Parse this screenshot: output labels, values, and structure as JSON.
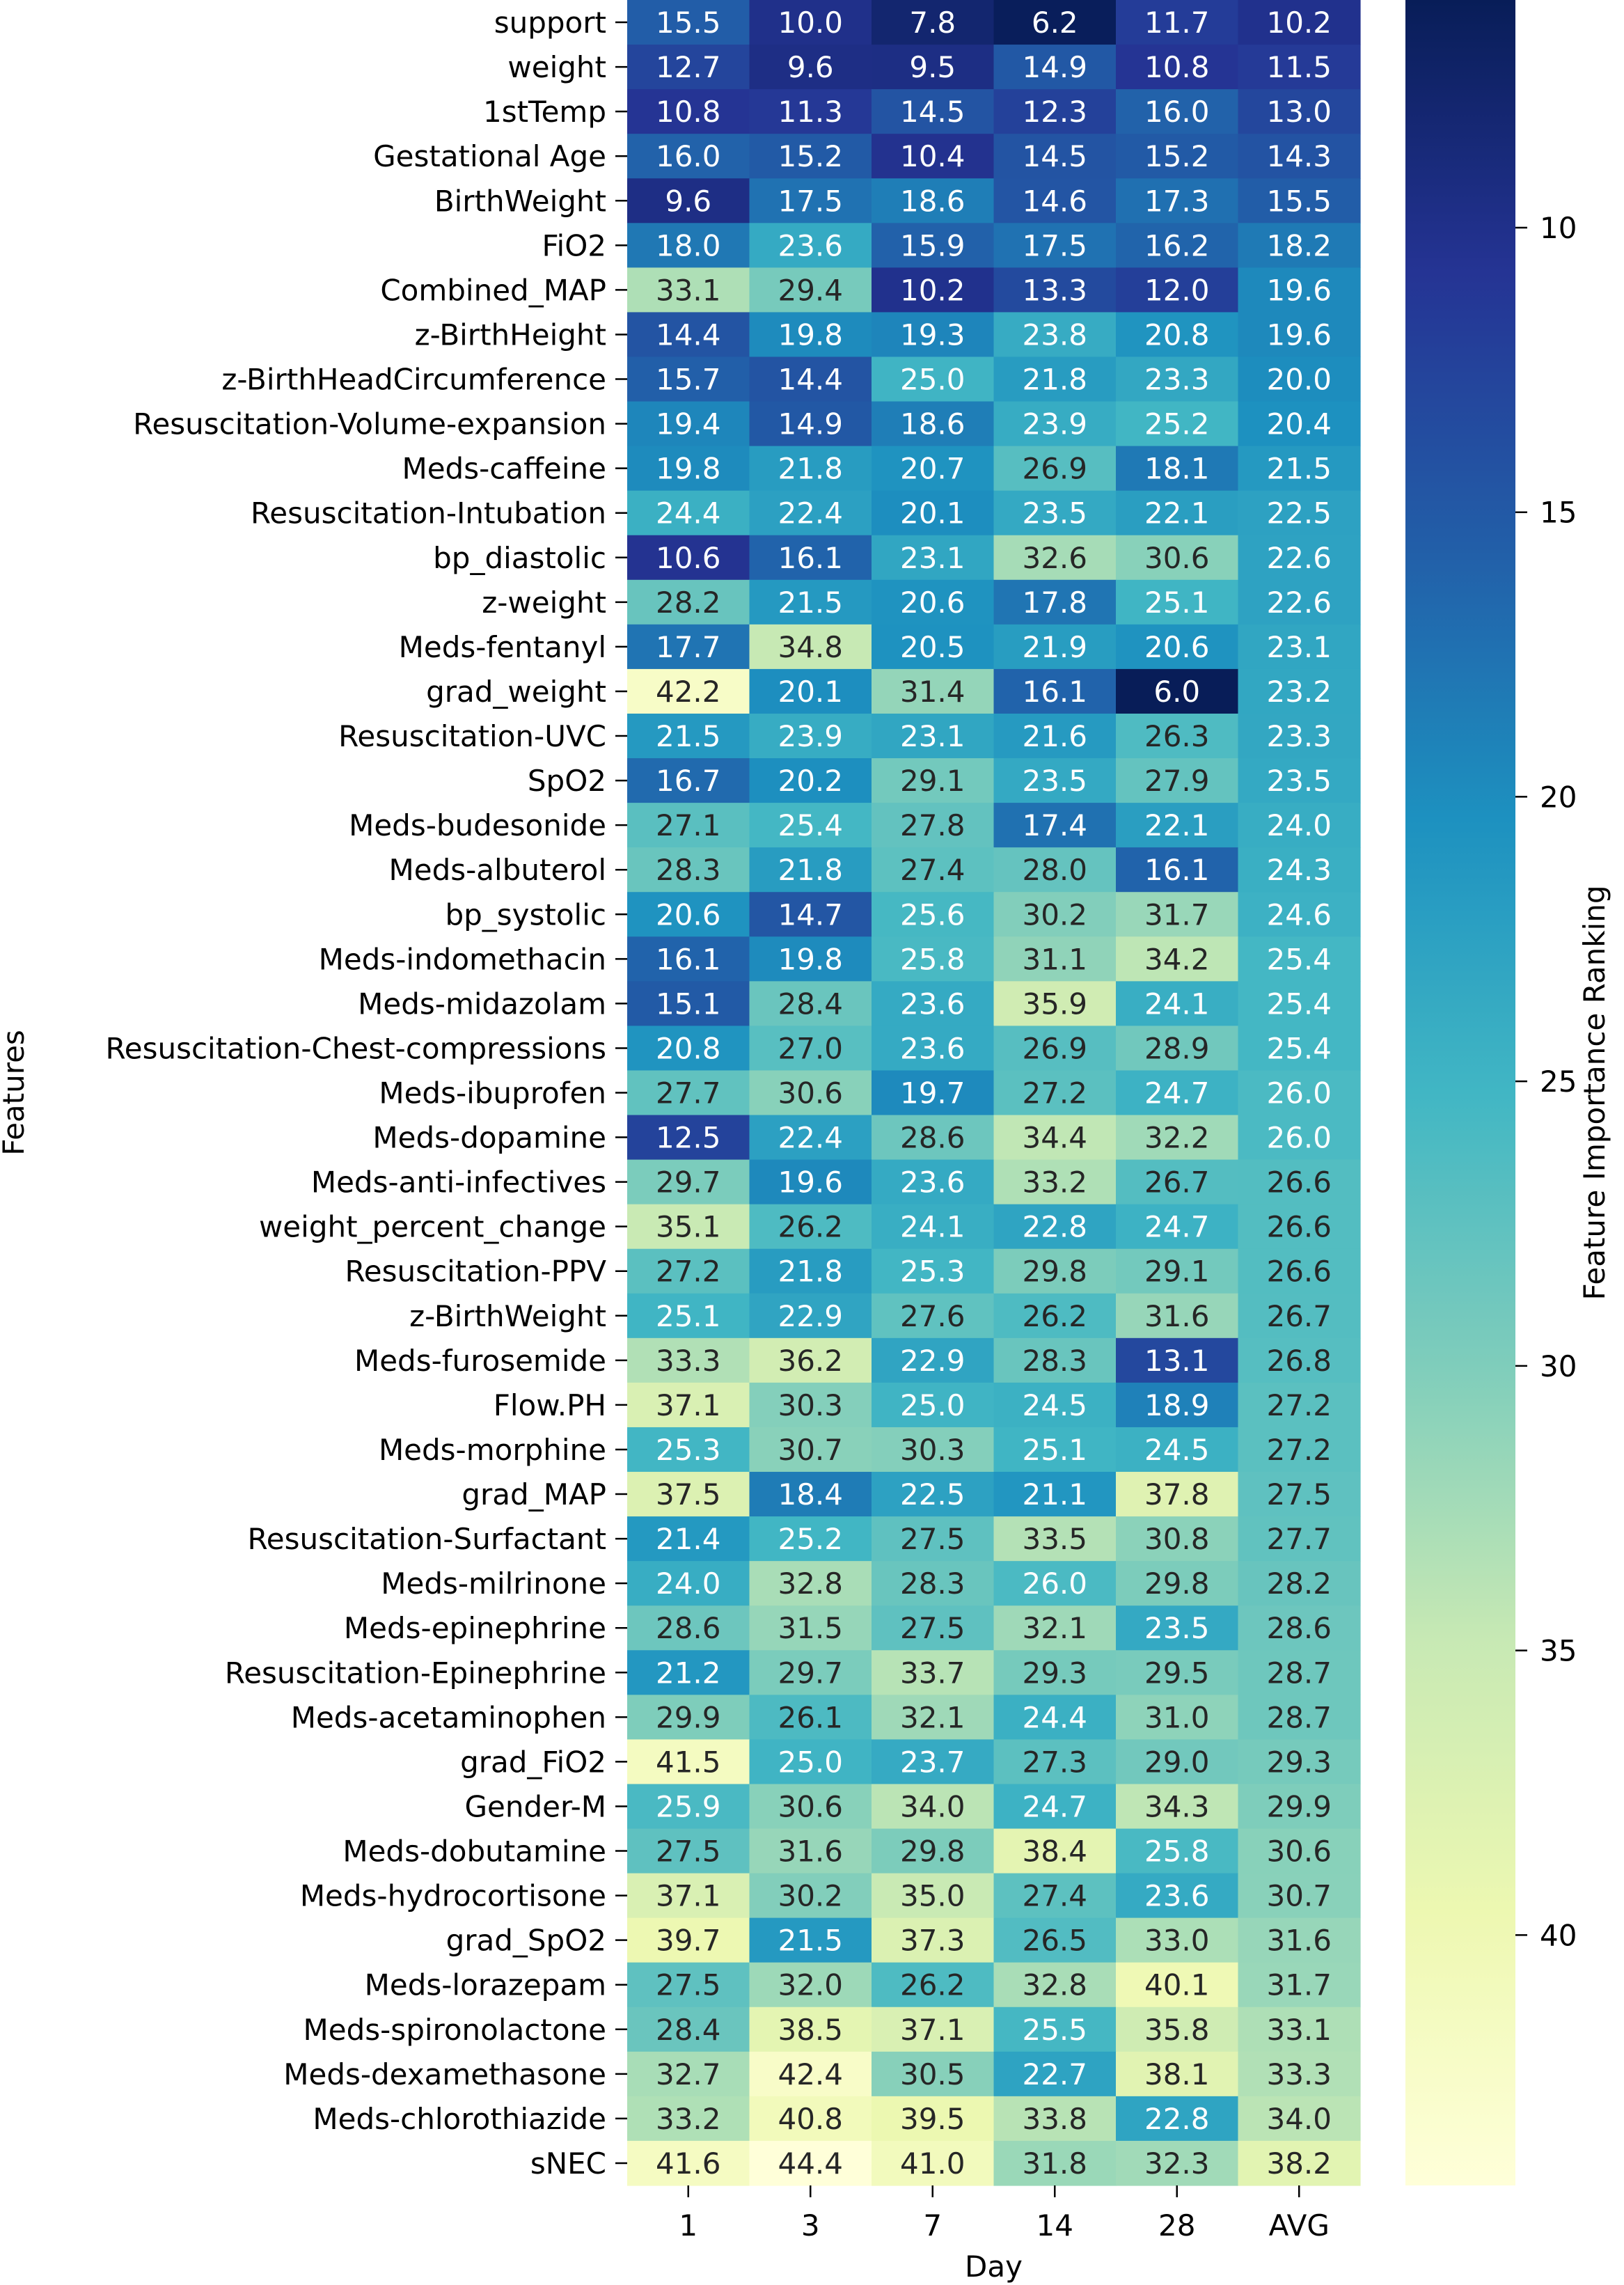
{
  "chart_data": {
    "type": "heatmap",
    "title": "",
    "xlabel": "Day",
    "ylabel": "Features",
    "colorbar_label": "Feature Importance Ranking",
    "colormap": "YlGnBu_r",
    "color_range": [
      6.0,
      44.4
    ],
    "colorbar_ticks": [
      10,
      15,
      20,
      25,
      30,
      35,
      40
    ],
    "x_categories": [
      "1",
      "3",
      "7",
      "14",
      "28",
      "AVG"
    ],
    "y_categories": [
      "support",
      "weight",
      "1stTemp",
      "Gestational Age",
      "BirthWeight",
      "FiO2",
      "Combined_MAP",
      "z-BirthHeight",
      "z-BirthHeadCircumference",
      "Resuscitation-Volume-expansion",
      "Meds-caffeine",
      "Resuscitation-Intubation",
      "bp_diastolic",
      "z-weight",
      "Meds-fentanyl",
      "grad_weight",
      "Resuscitation-UVC",
      "SpO2",
      "Meds-budesonide",
      "Meds-albuterol",
      "bp_systolic",
      "Meds-indomethacin",
      "Meds-midazolam",
      "Resuscitation-Chest-compressions",
      "Meds-ibuprofen",
      "Meds-dopamine",
      "Meds-anti-infectives",
      "weight_percent_change",
      "Resuscitation-PPV",
      "z-BirthWeight",
      "Meds-furosemide",
      "Flow.PH",
      "Meds-morphine",
      "grad_MAP",
      "Resuscitation-Surfactant",
      "Meds-milrinone",
      "Meds-epinephrine",
      "Resuscitation-Epinephrine",
      "Meds-acetaminophen",
      "grad_FiO2",
      "Gender-M",
      "Meds-dobutamine",
      "Meds-hydrocortisone",
      "grad_SpO2",
      "Meds-lorazepam",
      "Meds-spironolactone",
      "Meds-dexamethasone",
      "Meds-chlorothiazide",
      "sNEC"
    ],
    "values": [
      [
        15.5,
        10.0,
        7.8,
        6.2,
        11.7,
        10.2
      ],
      [
        12.7,
        9.6,
        9.5,
        14.9,
        10.8,
        11.5
      ],
      [
        10.8,
        11.3,
        14.5,
        12.3,
        16.0,
        13.0
      ],
      [
        16.0,
        15.2,
        10.4,
        14.5,
        15.2,
        14.3
      ],
      [
        9.6,
        17.5,
        18.6,
        14.6,
        17.3,
        15.5
      ],
      [
        18.0,
        23.6,
        15.9,
        17.5,
        16.2,
        18.2
      ],
      [
        33.1,
        29.4,
        10.2,
        13.3,
        12.0,
        19.6
      ],
      [
        14.4,
        19.8,
        19.3,
        23.8,
        20.8,
        19.6
      ],
      [
        15.7,
        14.4,
        25.0,
        21.8,
        23.3,
        20.0
      ],
      [
        19.4,
        14.9,
        18.6,
        23.9,
        25.2,
        20.4
      ],
      [
        19.8,
        21.8,
        20.7,
        26.9,
        18.1,
        21.5
      ],
      [
        24.4,
        22.4,
        20.1,
        23.5,
        22.1,
        22.5
      ],
      [
        10.6,
        16.1,
        23.1,
        32.6,
        30.6,
        22.6
      ],
      [
        28.2,
        21.5,
        20.6,
        17.8,
        25.1,
        22.6
      ],
      [
        17.7,
        34.8,
        20.5,
        21.9,
        20.6,
        23.1
      ],
      [
        42.2,
        20.1,
        31.4,
        16.1,
        6.0,
        23.2
      ],
      [
        21.5,
        23.9,
        23.1,
        21.6,
        26.3,
        23.3
      ],
      [
        16.7,
        20.2,
        29.1,
        23.5,
        27.9,
        23.5
      ],
      [
        27.1,
        25.4,
        27.8,
        17.4,
        22.1,
        24.0
      ],
      [
        28.3,
        21.8,
        27.4,
        28.0,
        16.1,
        24.3
      ],
      [
        20.6,
        14.7,
        25.6,
        30.2,
        31.7,
        24.6
      ],
      [
        16.1,
        19.8,
        25.8,
        31.1,
        34.2,
        25.4
      ],
      [
        15.1,
        28.4,
        23.6,
        35.9,
        24.1,
        25.4
      ],
      [
        20.8,
        27.0,
        23.6,
        26.9,
        28.9,
        25.4
      ],
      [
        27.7,
        30.6,
        19.7,
        27.2,
        24.7,
        26.0
      ],
      [
        12.5,
        22.4,
        28.6,
        34.4,
        32.2,
        26.0
      ],
      [
        29.7,
        19.6,
        23.6,
        33.2,
        26.7,
        26.6
      ],
      [
        35.1,
        26.2,
        24.1,
        22.8,
        24.7,
        26.6
      ],
      [
        27.2,
        21.8,
        25.3,
        29.8,
        29.1,
        26.6
      ],
      [
        25.1,
        22.9,
        27.6,
        26.2,
        31.6,
        26.7
      ],
      [
        33.3,
        36.2,
        22.9,
        28.3,
        13.1,
        26.8
      ],
      [
        37.1,
        30.3,
        25.0,
        24.5,
        18.9,
        27.2
      ],
      [
        25.3,
        30.7,
        30.3,
        25.1,
        24.5,
        27.2
      ],
      [
        37.5,
        18.4,
        22.5,
        21.1,
        37.8,
        27.5
      ],
      [
        21.4,
        25.2,
        27.5,
        33.5,
        30.8,
        27.7
      ],
      [
        24.0,
        32.8,
        28.3,
        26.0,
        29.8,
        28.2
      ],
      [
        28.6,
        31.5,
        27.5,
        32.1,
        23.5,
        28.6
      ],
      [
        21.2,
        29.7,
        33.7,
        29.3,
        29.5,
        28.7
      ],
      [
        29.9,
        26.1,
        32.1,
        24.4,
        31.0,
        28.7
      ],
      [
        41.5,
        25.0,
        23.7,
        27.3,
        29.0,
        29.3
      ],
      [
        25.9,
        30.6,
        34.0,
        24.7,
        34.3,
        29.9
      ],
      [
        27.5,
        31.6,
        29.8,
        38.4,
        25.8,
        30.6
      ],
      [
        37.1,
        30.2,
        35.0,
        27.4,
        23.6,
        30.7
      ],
      [
        39.7,
        21.5,
        37.3,
        26.5,
        33.0,
        31.6
      ],
      [
        27.5,
        32.0,
        26.2,
        32.8,
        40.1,
        31.7
      ],
      [
        28.4,
        38.5,
        37.1,
        25.5,
        35.8,
        33.1
      ],
      [
        32.7,
        42.4,
        30.5,
        22.7,
        38.1,
        33.3
      ],
      [
        33.2,
        40.8,
        39.5,
        33.8,
        22.8,
        34.0
      ],
      [
        41.6,
        44.4,
        41.0,
        31.8,
        32.3,
        38.2
      ]
    ],
    "annotation_colors": {
      "light": "#ffffff",
      "dark": "#262626"
    }
  }
}
